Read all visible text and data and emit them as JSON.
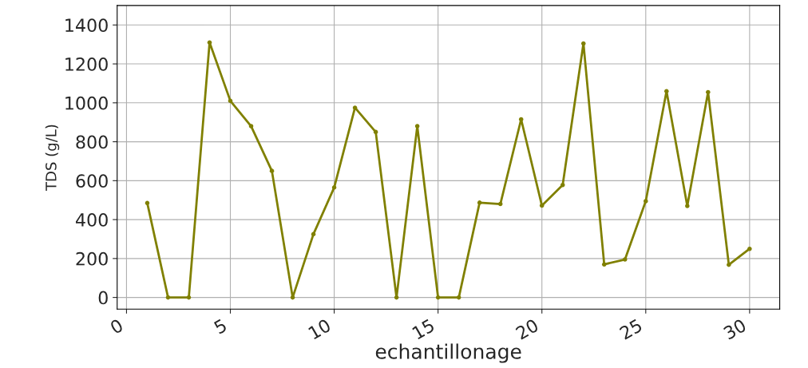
{
  "chart_data": {
    "type": "line",
    "xlabel": "echantillonage",
    "ylabel": "TDS (g/L)",
    "x": [
      1,
      2,
      3,
      4,
      5,
      6,
      7,
      8,
      9,
      10,
      11,
      12,
      13,
      14,
      15,
      16,
      17,
      18,
      19,
      20,
      21,
      22,
      23,
      24,
      25,
      26,
      27,
      28,
      29,
      30
    ],
    "series": [
      {
        "color": "#808000",
        "values": [
          485,
          0,
          0,
          1310,
          1010,
          880,
          650,
          0,
          325,
          565,
          975,
          850,
          0,
          880,
          0,
          0,
          487,
          480,
          915,
          472,
          578,
          1305,
          170,
          195,
          495,
          1060,
          470,
          1055,
          168,
          250
        ]
      }
    ],
    "xlim": [
      -0.45,
      31.45
    ],
    "ylim": [
      -60,
      1500
    ],
    "xticks": [
      0,
      5,
      10,
      15,
      20,
      25,
      30
    ],
    "yticks": [
      0,
      200,
      400,
      600,
      800,
      1000,
      1200,
      1400
    ],
    "grid": true,
    "marker": "circle",
    "line_style": "solid"
  }
}
